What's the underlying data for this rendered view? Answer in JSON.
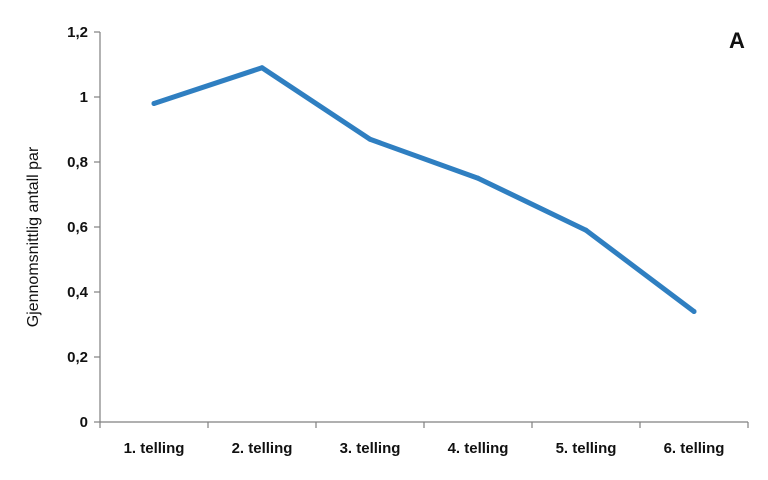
{
  "panel_label": "A",
  "chart_data": {
    "type": "line",
    "categories": [
      "1. telling",
      "2. telling",
      "3. telling",
      "4. telling",
      "5. telling",
      "6. telling"
    ],
    "series": [
      {
        "values": [
          0.98,
          1.09,
          0.87,
          0.75,
          0.59,
          0.34
        ],
        "color": "#2f7fc1"
      }
    ],
    "title": "",
    "xlabel": "",
    "ylabel": "Gjennomsnittlig antall par",
    "ylim": [
      0,
      1.2
    ],
    "yticks": [
      "0",
      "0,2",
      "0,4",
      "0,6",
      "0,8",
      "1",
      "1,2"
    ],
    "grid": false,
    "legend": "none"
  }
}
